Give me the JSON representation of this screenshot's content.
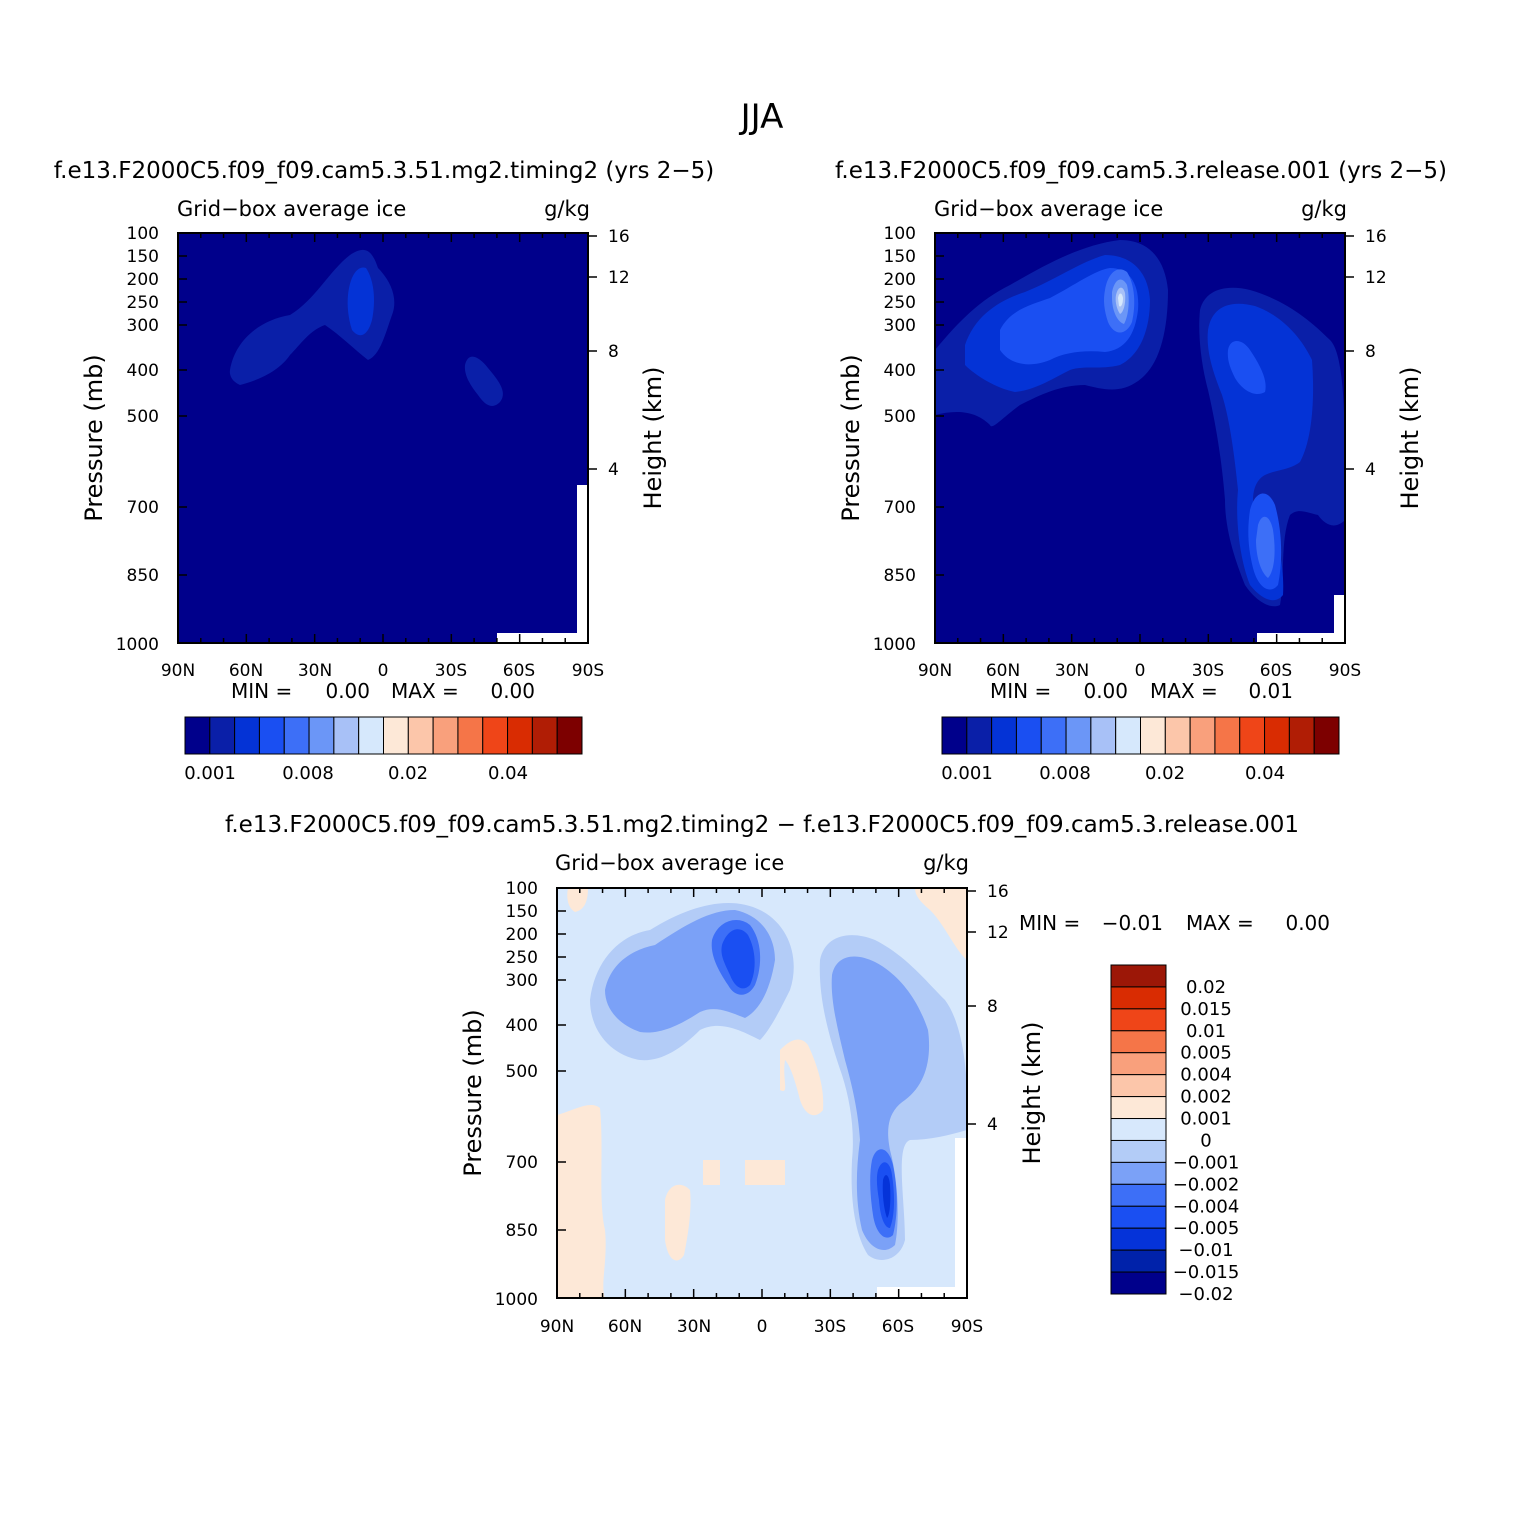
{
  "figure_title": "JJA",
  "colors": {
    "seq_scale": [
      "#00008b",
      "#0a1fa8",
      "#0433d6",
      "#1a4ff2",
      "#3d6ff7",
      "#6b96f7",
      "#a8c1f7",
      "#d6e8fc",
      "#fde8d7",
      "#fcc6aa",
      "#f9a07c",
      "#f57548",
      "#ef4518",
      "#d92c02",
      "#b01d05",
      "#7d0000"
    ],
    "diff_scale": [
      "#00008b",
      "#0022aa",
      "#0533d9",
      "#1a4ff2",
      "#3d6ff7",
      "#7ba1f7",
      "#b3ccf7",
      "#d7e8fc",
      "#fde8d7",
      "#fcc6aa",
      "#f9a07c",
      "#f57548",
      "#ef4518",
      "#d92c02",
      "#9c1707"
    ]
  },
  "chart_data": [
    {
      "type": "contour",
      "panel": "top-left",
      "case_title": "f.e13.F2000C5.f09_f09.cam5.3.51.mg2.timing2 (yrs 2−5)",
      "field_label": "Grid−box average ice",
      "units": "g/kg",
      "ylabel": "Pressure (mb)",
      "ylabel_right": "Height (km)",
      "x_ticks": [
        "90N",
        "60N",
        "30N",
        "0",
        "30S",
        "60S",
        "90S"
      ],
      "y_ticks": [
        "100",
        "150",
        "200",
        "250",
        "300",
        "400",
        "500",
        "700",
        "850",
        "1000"
      ],
      "y_ticks_right": [
        "16",
        "12",
        "8",
        "4"
      ],
      "min_label": "MIN =",
      "min_value": "0.00",
      "max_label": "MAX =",
      "max_value": "0.00",
      "colorbar_labels": [
        "0.001",
        "0.008",
        "0.02",
        "0.04"
      ]
    },
    {
      "type": "contour",
      "panel": "top-right",
      "case_title": "f.e13.F2000C5.f09_f09.cam5.3.release.001 (yrs 2−5)",
      "field_label": "Grid−box average ice",
      "units": "g/kg",
      "ylabel": "Pressure (mb)",
      "ylabel_right": "Height (km)",
      "x_ticks": [
        "90N",
        "60N",
        "30N",
        "0",
        "30S",
        "60S",
        "90S"
      ],
      "y_ticks": [
        "100",
        "150",
        "200",
        "250",
        "300",
        "400",
        "500",
        "700",
        "850",
        "1000"
      ],
      "y_ticks_right": [
        "16",
        "12",
        "8",
        "4"
      ],
      "min_label": "MIN =",
      "min_value": "0.00",
      "max_label": "MAX =",
      "max_value": "0.01",
      "colorbar_labels": [
        "0.001",
        "0.008",
        "0.02",
        "0.04"
      ]
    },
    {
      "type": "contour",
      "panel": "bottom-difference",
      "case_title": "f.e13.F2000C5.f09_f09.cam5.3.51.mg2.timing2 − f.e13.F2000C5.f09_f09.cam5.3.release.001",
      "field_label": "Grid−box average ice",
      "units": "g/kg",
      "ylabel": "Pressure (mb)",
      "ylabel_right": "Height (km)",
      "x_ticks": [
        "90N",
        "60N",
        "30N",
        "0",
        "30S",
        "60S",
        "90S"
      ],
      "y_ticks": [
        "100",
        "150",
        "200",
        "250",
        "300",
        "400",
        "500",
        "700",
        "850",
        "1000"
      ],
      "y_ticks_right": [
        "16",
        "12",
        "8",
        "4"
      ],
      "min_label": "MIN =",
      "min_value": "−0.01",
      "max_label": "MAX =",
      "max_value": "0.00",
      "colorbar_labels": [
        "0.02",
        "0.015",
        "0.01",
        "0.005",
        "0.004",
        "0.002",
        "0.001",
        "0",
        "−0.001",
        "−0.002",
        "−0.004",
        "−0.005",
        "−0.01",
        "−0.015",
        "−0.02"
      ]
    }
  ]
}
